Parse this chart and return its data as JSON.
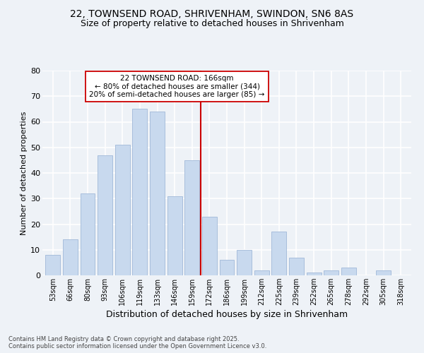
{
  "title_line1": "22, TOWNSEND ROAD, SHRIVENHAM, SWINDON, SN6 8AS",
  "title_line2": "Size of property relative to detached houses in Shrivenham",
  "xlabel": "Distribution of detached houses by size in Shrivenham",
  "ylabel": "Number of detached properties",
  "categories": [
    "53sqm",
    "66sqm",
    "80sqm",
    "93sqm",
    "106sqm",
    "119sqm",
    "133sqm",
    "146sqm",
    "159sqm",
    "172sqm",
    "186sqm",
    "199sqm",
    "212sqm",
    "225sqm",
    "239sqm",
    "252sqm",
    "265sqm",
    "278sqm",
    "292sqm",
    "305sqm",
    "318sqm"
  ],
  "values": [
    8,
    14,
    32,
    47,
    51,
    65,
    64,
    31,
    45,
    23,
    6,
    10,
    2,
    17,
    7,
    1,
    2,
    3,
    0,
    2,
    0
  ],
  "bar_color": "#c8d9ee",
  "bar_edge_color": "#a0b8d8",
  "red_line_x": 8.5,
  "red_line_color": "#cc0000",
  "ylim": [
    0,
    80
  ],
  "yticks": [
    0,
    10,
    20,
    30,
    40,
    50,
    60,
    70,
    80
  ],
  "annotation_text": "22 TOWNSEND ROAD: 166sqm\n← 80% of detached houses are smaller (344)\n20% of semi-detached houses are larger (85) →",
  "annotation_box_color": "#ffffff",
  "annotation_box_edge": "#cc0000",
  "footer_line1": "Contains HM Land Registry data © Crown copyright and database right 2025.",
  "footer_line2": "Contains public sector information licensed under the Open Government Licence v3.0.",
  "bg_color": "#eef2f7",
  "grid_color": "#ffffff",
  "title_fontsize": 10,
  "subtitle_fontsize": 9,
  "ylabel_fontsize": 8,
  "xlabel_fontsize": 9,
  "tick_fontsize": 7,
  "footer_fontsize": 6,
  "ann_fontsize": 7.5
}
